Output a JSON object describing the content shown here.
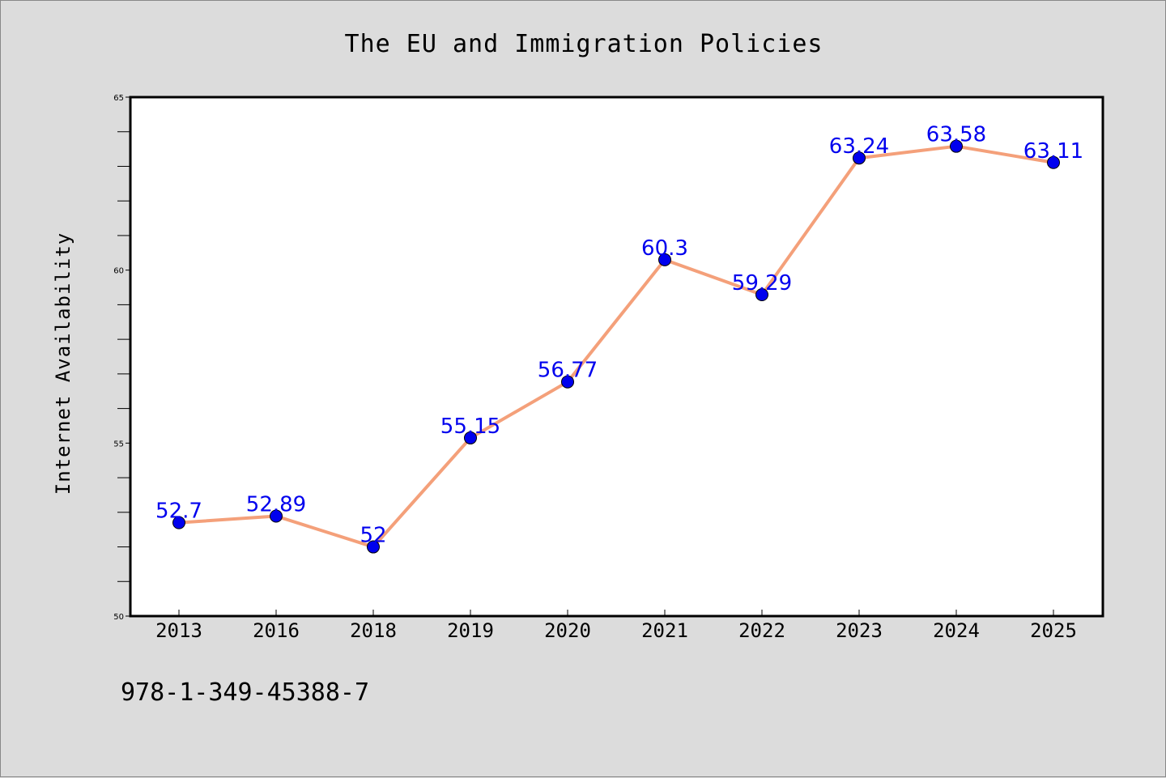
{
  "chart_data": {
    "type": "line",
    "title": "The EU and Immigration Policies",
    "xlabel": "",
    "ylabel": "Internet Availability",
    "categories": [
      "2013",
      "2016",
      "2018",
      "2019",
      "2020",
      "2021",
      "2022",
      "2023",
      "2024",
      "2025"
    ],
    "series": [
      {
        "values": [
          52.7,
          52.89,
          52,
          55.15,
          56.77,
          60.3,
          59.29,
          63.24,
          63.58,
          63.11
        ],
        "labels": [
          "52.7",
          "52.89",
          "52",
          "55.15",
          "56.77",
          "60.3",
          "59.29",
          "63.24",
          "63.58",
          "63.11"
        ]
      }
    ],
    "ylim": [
      50,
      65
    ],
    "y_ticks": [
      50,
      55,
      60,
      65
    ],
    "y_tick_labels": [
      "50",
      "55",
      "60",
      "65"
    ],
    "grid": false,
    "colors": {
      "line": "#f4a07a",
      "marker": "#0000ee",
      "label": "#0000ee",
      "background": "#dcdcdc",
      "plot_background": "#ffffff"
    }
  },
  "footnote": "978-1-349-45388-7"
}
